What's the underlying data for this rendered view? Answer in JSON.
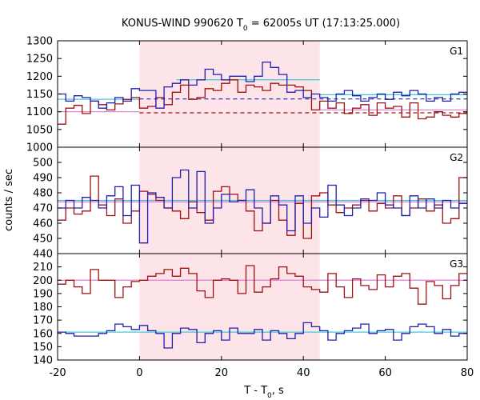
{
  "chart_data": {
    "type": "line",
    "title": "KONUS-WIND 990620 T",
    "title_sub": "0",
    "title_rest": " = 62005s UT (17:13:25.000)",
    "xlabel": "T - T",
    "xlabel_sub": "0",
    "xlabel_rest": ", s",
    "ylabel": "counts / sec",
    "xlim": [
      -20,
      80
    ],
    "x_ticks": [
      -20,
      0,
      20,
      40,
      60,
      80
    ],
    "highlight_x": [
      0,
      44
    ],
    "bin_width": 2,
    "bin_start": -20,
    "colors": {
      "red": "#a01010",
      "blue": "#2020b0",
      "cyan": "#40c8d8",
      "pink": "#e07ad8",
      "shade": "#fde4e8"
    },
    "panels": [
      {
        "label": "G1",
        "ylim": [
          1000,
          1300
        ],
        "y_ticks": [
          1000,
          1050,
          1100,
          1150,
          1200,
          1250,
          1300
        ],
        "series": [
          {
            "color": "red",
            "values": [
              1065,
              1110,
              1118,
              1095,
              1130,
              1120,
              1105,
              1122,
              1135,
              1140,
              1110,
              1115,
              1140,
              1120,
              1155,
              1175,
              1135,
              1140,
              1165,
              1160,
              1180,
              1190,
              1155,
              1175,
              1170,
              1160,
              1180,
              1175,
              1175,
              1170,
              1160,
              1105,
              1130,
              1110,
              1125,
              1095,
              1110,
              1120,
              1090,
              1125,
              1110,
              1115,
              1085,
              1125,
              1080,
              1085,
              1100,
              1090,
              1085,
              1095
            ]
          },
          {
            "color": "blue",
            "values": [
              1150,
              1130,
              1145,
              1140,
              1130,
              1110,
              1125,
              1140,
              1130,
              1165,
              1160,
              1160,
              1110,
              1170,
              1180,
              1190,
              1175,
              1190,
              1220,
              1205,
              1190,
              1200,
              1200,
              1185,
              1200,
              1240,
              1225,
              1205,
              1155,
              1160,
              1140,
              1150,
              1140,
              1130,
              1150,
              1160,
              1145,
              1130,
              1140,
              1150,
              1135,
              1155,
              1145,
              1160,
              1150,
              1130,
              1140,
              1130,
              1150,
              1155
            ]
          }
        ],
        "fit_lines": [
          {
            "color": "cyan",
            "style": "solid",
            "x": [
              -20,
              0
            ],
            "y": 1135
          },
          {
            "color": "cyan",
            "style": "solid",
            "x": [
              9,
              44
            ],
            "y": 1190
          },
          {
            "color": "cyan",
            "style": "solid",
            "x": [
              44,
              80
            ],
            "y": 1148
          },
          {
            "color": "pink",
            "style": "solid",
            "x": [
              -20,
              0
            ],
            "y": 1100
          },
          {
            "color": "pink",
            "style": "solid",
            "x": [
              44,
              80
            ],
            "y": 1105
          },
          {
            "color": "blue",
            "style": "dashed",
            "x": [
              0,
              80
            ],
            "y": 1136
          },
          {
            "color": "red",
            "style": "dashed",
            "x": [
              0,
              80
            ],
            "y": 1097
          }
        ]
      },
      {
        "label": "G2",
        "ylim": [
          440,
          510
        ],
        "y_ticks": [
          440,
          450,
          460,
          470,
          480,
          490,
          500
        ],
        "series": [
          {
            "color": "red",
            "values": [
              462,
              470,
              466,
              468,
              491,
              472,
              465,
              476,
              460,
              468,
              481,
              479,
              475,
              470,
              468,
              463,
              474,
              467,
              462,
              481,
              484,
              479,
              475,
              468,
              455,
              460,
              475,
              462,
              452,
              473,
              450,
              478,
              480,
              472,
              467,
              470,
              472,
              475,
              468,
              473,
              470,
              478,
              465,
              470,
              476,
              468,
              472,
              460,
              463,
              490
            ]
          },
          {
            "color": "blue",
            "values": [
              470,
              475,
              470,
              477,
              475,
              470,
              478,
              484,
              465,
              485,
              447,
              480,
              477,
              470,
              490,
              495,
              470,
              494,
              460,
              470,
              479,
              474,
              475,
              482,
              470,
              460,
              478,
              472,
              455,
              478,
              460,
              470,
              464,
              485,
              472,
              465,
              470,
              476,
              475,
              480,
              472,
              470,
              465,
              478,
              470,
              476,
              470,
              475,
              470,
              473
            ]
          }
        ],
        "fit_lines": [
          {
            "color": "cyan",
            "style": "solid",
            "x": [
              -20,
              80
            ],
            "y": 475
          },
          {
            "color": "pink",
            "style": "solid",
            "x": [
              -20,
              80
            ],
            "y": 474
          }
        ]
      },
      {
        "label": "G3",
        "ylim": [
          140,
          220
        ],
        "y_ticks": [
          140,
          150,
          160,
          170,
          180,
          190,
          200,
          210
        ],
        "series": [
          {
            "color": "red",
            "values": [
              197,
              200,
              195,
              190,
              208,
              200,
              200,
              187,
              195,
              199,
              200,
              203,
              205,
              208,
              203,
              209,
              205,
              192,
              187,
              200,
              201,
              200,
              190,
              211,
              191,
              195,
              201,
              210,
              205,
              203,
              195,
              193,
              191,
              205,
              195,
              187,
              201,
              196,
              193,
              204,
              195,
              203,
              205,
              194,
              182,
              199,
              196,
              186,
              196,
              205
            ]
          },
          {
            "color": "blue",
            "values": [
              161,
              160,
              158,
              158,
              158,
              160,
              162,
              167,
              165,
              163,
              166,
              162,
              160,
              149,
              160,
              164,
              163,
              153,
              160,
              162,
              155,
              164,
              160,
              160,
              163,
              155,
              162,
              160,
              156,
              160,
              168,
              165,
              162,
              155,
              160,
              162,
              164,
              167,
              160,
              162,
              163,
              155,
              160,
              165,
              167,
              165,
              160,
              163,
              158,
              160
            ]
          }
        ],
        "fit_lines": [
          {
            "color": "cyan",
            "style": "solid",
            "x": [
              -20,
              80
            ],
            "y": 161
          },
          {
            "color": "pink",
            "style": "solid",
            "x": [
              -20,
              80
            ],
            "y": 200
          }
        ]
      }
    ]
  }
}
